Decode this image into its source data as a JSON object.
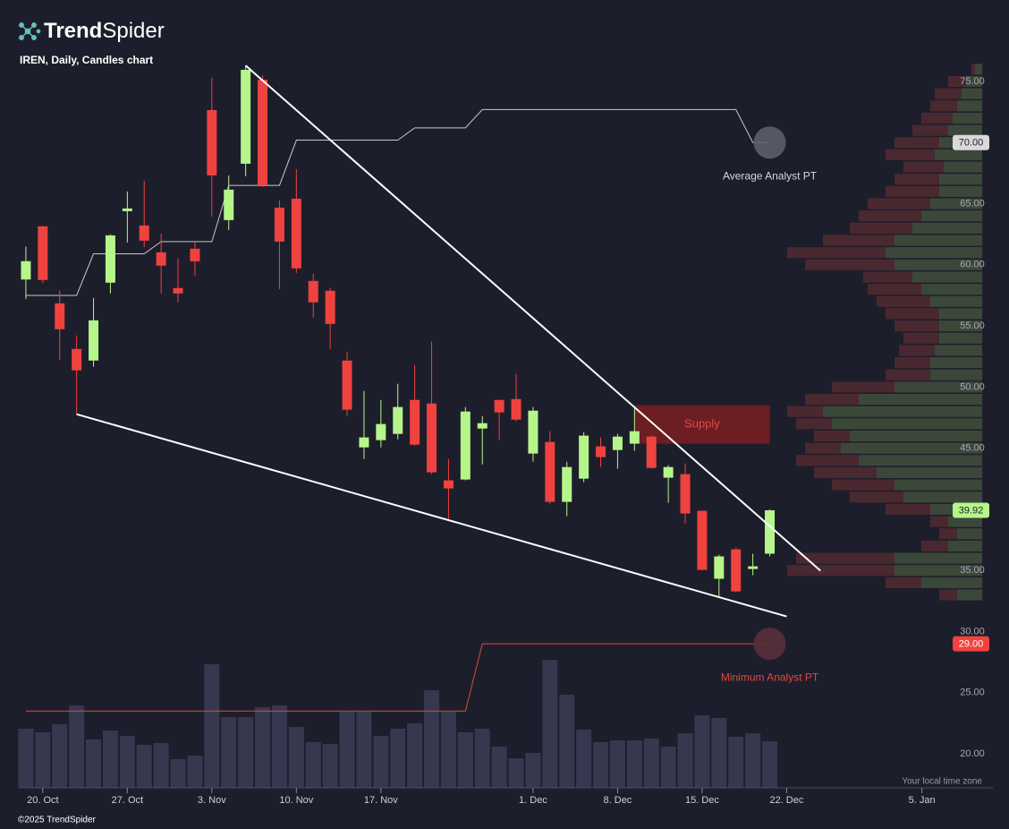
{
  "brand": {
    "bold": "Trend",
    "light": "Spider"
  },
  "footer": "©2025 TrendSpider",
  "chart_data": {
    "type": "candlestick",
    "title": "IREN, Daily, Candles chart",
    "timezone_note": "Your local time zone",
    "up_color": "#b5f58a",
    "down_color": "#f0423f",
    "volume_color": "#363850",
    "x": [
      0,
      1,
      2,
      3,
      4,
      5,
      6,
      7,
      8,
      9,
      10,
      11,
      12,
      13,
      14,
      15,
      16,
      17,
      18,
      19,
      20,
      21,
      22,
      23,
      24,
      25,
      26,
      27,
      28,
      29,
      30,
      31,
      32,
      33,
      34,
      35,
      36,
      37,
      38,
      39,
      40,
      41,
      42,
      43,
      44
    ],
    "open": [
      58.8,
      63.15,
      56.85,
      53.12,
      52.17,
      58.54,
      64.39,
      63.22,
      61.02,
      58.1,
      61.32,
      72.66,
      63.66,
      68.27,
      75.15,
      64.68,
      65.41,
      58.68,
      57.88,
      52.17,
      45.07,
      45.66,
      46.17,
      48.95,
      48.66,
      42.37,
      42.44,
      46.61,
      48.95,
      49.02,
      44.56,
      45.51,
      40.61,
      42.51,
      45.15,
      44.85,
      45.37,
      45.95,
      42.59,
      42.88,
      39.88,
      34.32,
      36.73,
      35.12,
      36.37
    ],
    "high": [
      61.5,
      63.2,
      57.88,
      54.22,
      57.29,
      62.49,
      66.0,
      66.88,
      62.56,
      60.51,
      61.9,
      75.29,
      67.32,
      76.32,
      75.51,
      65.27,
      67.83,
      59.27,
      58.1,
      52.9,
      49.68,
      48.95,
      50.27,
      51.81,
      53.71,
      44.12,
      48.37,
      47.63,
      48.95,
      51.07,
      48.37,
      46.39,
      43.9,
      46.32,
      45.88,
      46.17,
      48.44,
      46.02,
      43.61,
      43.76,
      39.9,
      36.29,
      36.88,
      36.37,
      40.0
    ],
    "low": [
      57.2,
      58.5,
      52.24,
      47.78,
      51.66,
      57.66,
      61.83,
      61.46,
      57.66,
      56.93,
      59.12,
      63.95,
      62.85,
      67.24,
      66.37,
      58.02,
      59.34,
      55.68,
      53.12,
      47.63,
      44.12,
      45.07,
      45.73,
      45.22,
      42.88,
      39.22,
      42.37,
      43.68,
      45.66,
      47.2,
      43.9,
      40.46,
      39.44,
      42.22,
      43.46,
      43.32,
      44.78,
      43.32,
      40.54,
      38.85,
      35.0,
      32.85,
      33.22,
      34.61,
      36.15
    ],
    "close": [
      60.3,
      58.76,
      54.73,
      51.37,
      55.46,
      62.41,
      64.61,
      61.98,
      59.93,
      57.66,
      60.29,
      67.32,
      66.15,
      75.95,
      66.51,
      61.9,
      59.71,
      56.93,
      55.17,
      48.15,
      45.88,
      46.98,
      48.37,
      45.29,
      43.03,
      41.71,
      48.0,
      47.05,
      47.93,
      47.34,
      48.07,
      40.61,
      43.46,
      46.03,
      44.27,
      45.95,
      46.39,
      43.39,
      43.46,
      39.66,
      35.05,
      36.15,
      33.29,
      35.34,
      39.92
    ],
    "volume": [
      66,
      62,
      71,
      92,
      54,
      64,
      58,
      48,
      50,
      32,
      36,
      138,
      79,
      79,
      90,
      92,
      68,
      51,
      49,
      85,
      85,
      58,
      66,
      72,
      109,
      85,
      62,
      66,
      46,
      33,
      39,
      143,
      104,
      65,
      51,
      53,
      53,
      55,
      46,
      61,
      81,
      78,
      57,
      61,
      52
    ],
    "series": [
      {
        "name": "Average Analyst PT",
        "color": "#c8c8c8",
        "marker_color": "#5c5d6b",
        "label_color": "#d8d8d8",
        "values": [
          57.5,
          57.5,
          57.5,
          57.5,
          60.9,
          60.9,
          60.9,
          60.9,
          61.9,
          61.9,
          61.9,
          61.9,
          66.5,
          66.5,
          66.5,
          66.5,
          70.2,
          70.2,
          70.2,
          70.2,
          70.2,
          70.2,
          70.2,
          71.2,
          71.2,
          71.2,
          71.2,
          72.7,
          72.7,
          72.7,
          72.7,
          72.7,
          72.7,
          72.7,
          72.7,
          72.7,
          72.7,
          72.7,
          72.7,
          72.7,
          72.7,
          72.7,
          72.7,
          70.0,
          70.0
        ]
      },
      {
        "name": "Minimum Analyst PT",
        "color": "#e0483f",
        "marker_color": "#5a2f39",
        "label_color": "#e0483f",
        "values": [
          23.5,
          23.5,
          23.5,
          23.5,
          23.5,
          23.5,
          23.5,
          23.5,
          23.5,
          23.5,
          23.5,
          23.5,
          23.5,
          23.5,
          23.5,
          23.5,
          23.5,
          23.5,
          23.5,
          23.5,
          23.5,
          23.5,
          23.5,
          23.5,
          23.5,
          23.5,
          23.5,
          29.0,
          29.0,
          29.0,
          29.0,
          29.0,
          29.0,
          29.0,
          29.0,
          29.0,
          29.0,
          29.0,
          29.0,
          29.0,
          29.0,
          29.0,
          29.0,
          29.0,
          29.0
        ]
      }
    ],
    "trendlines": [
      {
        "x": [
          13,
          47
        ],
        "values": [
          76.3,
          34.98
        ]
      },
      {
        "x": [
          3,
          45
        ],
        "values": [
          47.78,
          31.24
        ]
      }
    ],
    "zones": [
      {
        "label": "Supply",
        "x": [
          36,
          44
        ],
        "range": [
          45.37,
          48.51
        ],
        "color": "#7a1e22",
        "label_color": "#e8484a"
      }
    ],
    "volume_profile": {
      "prices": [
        33,
        34,
        35,
        36,
        37,
        38,
        39,
        40,
        41,
        42,
        43,
        44,
        45,
        46,
        47,
        48,
        49,
        50,
        51,
        52,
        53,
        54,
        55,
        56,
        57,
        58,
        59,
        60,
        61,
        62,
        63,
        64,
        65,
        66,
        67,
        68,
        69,
        70,
        71,
        72,
        73,
        74,
        75,
        76
      ],
      "up": [
        28,
        68,
        98,
        98,
        38,
        28,
        38,
        58,
        88,
        98,
        118,
        138,
        158,
        148,
        168,
        178,
        138,
        98,
        58,
        58,
        53,
        48,
        48,
        48,
        58,
        68,
        78,
        98,
        108,
        98,
        78,
        68,
        58,
        48,
        48,
        43,
        53,
        48,
        38,
        33,
        28,
        23,
        18,
        8
      ],
      "down": [
        20,
        40,
        120,
        110,
        30,
        20,
        20,
        50,
        60,
        70,
        70,
        70,
        40,
        40,
        40,
        40,
        60,
        70,
        50,
        40,
        40,
        40,
        50,
        60,
        60,
        60,
        55,
        100,
        110,
        80,
        70,
        70,
        70,
        60,
        50,
        45,
        55,
        50,
        40,
        35,
        30,
        30,
        20,
        4
      ],
      "up_color": "#3b4839",
      "down_color": "#4a2830"
    },
    "price_tags": [
      {
        "value": 70.0,
        "label": "70.00",
        "color": "#d9d9d9",
        "text_color": "#1d1e2b"
      },
      {
        "value": 39.92,
        "label": "39.92",
        "color": "#b5f58a",
        "text_color": "#1d1e2b"
      },
      {
        "value": 29.0,
        "label": "29.00",
        "color": "#f0423f",
        "text_color": "#ffffff"
      }
    ],
    "xlim": [
      -0.42,
      57.2
    ],
    "ylim": [
      17.22,
      77.27
    ],
    "xticks": [
      {
        "value": 1,
        "label": "20. Oct"
      },
      {
        "value": 6,
        "label": "27. Oct"
      },
      {
        "value": 11,
        "label": "3. Nov"
      },
      {
        "value": 16,
        "label": "10. Nov"
      },
      {
        "value": 21,
        "label": "17. Nov"
      },
      {
        "value": 30,
        "label": "1. Dec"
      },
      {
        "value": 35,
        "label": "8. Dec"
      },
      {
        "value": 40,
        "label": "15. Dec"
      },
      {
        "value": 45,
        "label": "22. Dec"
      },
      {
        "value": 53,
        "label": "5. Jan"
      }
    ],
    "yticks": [
      {
        "value": 75,
        "label": "75.00"
      },
      {
        "value": 65,
        "label": "65.00"
      },
      {
        "value": 60,
        "label": "60.00"
      },
      {
        "value": 55,
        "label": "55.00"
      },
      {
        "value": 50,
        "label": "50.00"
      },
      {
        "value": 45,
        "label": "45.00"
      },
      {
        "value": 35,
        "label": "35.00"
      },
      {
        "value": 30,
        "label": "30.00"
      },
      {
        "value": 25,
        "label": "25.00"
      },
      {
        "value": 20,
        "label": "20.00"
      }
    ]
  }
}
